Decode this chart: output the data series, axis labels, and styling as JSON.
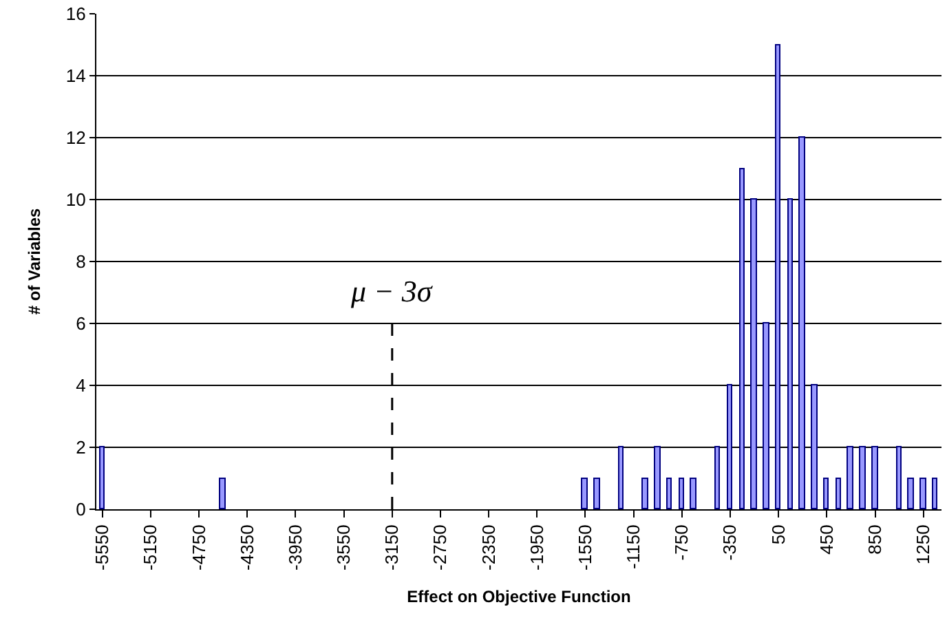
{
  "chart_data": {
    "type": "bar",
    "xlabel": "Effect on Objective Function",
    "ylabel": "# of Variables",
    "x": [
      -5550,
      -5450,
      -5350,
      -5250,
      -5150,
      -5050,
      -4950,
      -4850,
      -4750,
      -4650,
      -4550,
      -4450,
      -4350,
      -4250,
      -4150,
      -4050,
      -3950,
      -3850,
      -3750,
      -3650,
      -3550,
      -3450,
      -3350,
      -3250,
      -3150,
      -3050,
      -2950,
      -2850,
      -2750,
      -2650,
      -2550,
      -2450,
      -2350,
      -2250,
      -2150,
      -2050,
      -1950,
      -1850,
      -1750,
      -1650,
      -1550,
      -1450,
      -1350,
      -1250,
      -1150,
      -1050,
      -950,
      -850,
      -750,
      -650,
      -550,
      -450,
      -350,
      -250,
      -150,
      -50,
      50,
      150,
      250,
      350,
      450,
      550,
      650,
      750,
      850,
      950,
      1050,
      1150,
      1250,
      1350
    ],
    "values": [
      2,
      0,
      0,
      0,
      0,
      0,
      0,
      0,
      0,
      0,
      1,
      0,
      0,
      0,
      0,
      0,
      0,
      0,
      0,
      0,
      0,
      0,
      0,
      0,
      0,
      0,
      0,
      0,
      0,
      0,
      0,
      0,
      0,
      0,
      0,
      0,
      0,
      0,
      0,
      0,
      1,
      1,
      0,
      2,
      0,
      1,
      2,
      1,
      1,
      1,
      0,
      2,
      4,
      11,
      10,
      6,
      15,
      10,
      12,
      4,
      1,
      1,
      2,
      2,
      2,
      0,
      2,
      1,
      1,
      1
    ],
    "color": "#9999ff",
    "xlim": [
      -5600,
      1400
    ],
    "xticks": [
      -5550,
      -5150,
      -4750,
      -4350,
      -3950,
      -3550,
      -3150,
      -2750,
      -2350,
      -1950,
      -1550,
      -1150,
      -750,
      -350,
      50,
      450,
      850,
      1250
    ],
    "ylim": [
      0,
      16
    ],
    "yticks": [
      0,
      2,
      4,
      6,
      8,
      10,
      12,
      14,
      16
    ],
    "grid": "y",
    "ref_lines": [
      {
        "axis": "x",
        "value": -3150,
        "label": "μ − 3σ",
        "line_style": "dashed",
        "color": "#000000"
      }
    ]
  }
}
